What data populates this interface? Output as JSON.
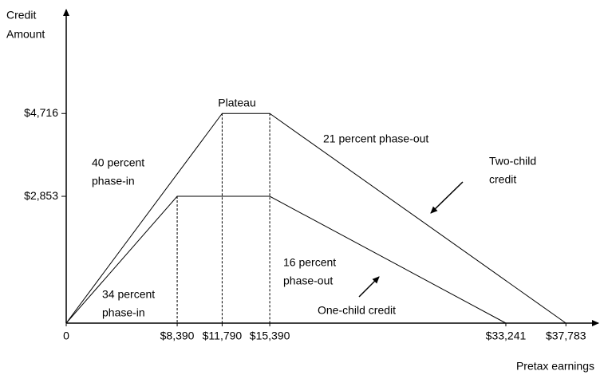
{
  "chart_data": {
    "type": "line",
    "x_label": "Pretax earnings",
    "y_label": [
      "Credit",
      "Amount"
    ],
    "xlim": [
      0,
      40000
    ],
    "ylim": [
      0,
      7000
    ],
    "xticks": [
      0,
      {
        "value": 8390,
        "label": "$8,390"
      },
      {
        "value": 11790,
        "label": "$11,790"
      },
      {
        "value": 15390,
        "label": "$15,390"
      },
      {
        "value": 33241,
        "label": "$33,241"
      },
      {
        "value": 37783,
        "label": "$37,783"
      }
    ],
    "yticks": [
      {
        "value": 2853,
        "label": "$2,853"
      },
      {
        "value": 4716,
        "label": "$4,716"
      }
    ],
    "series": [
      {
        "name": "Two-child credit",
        "color": "#000000",
        "x": [
          0,
          11790,
          15390,
          37783
        ],
        "values": [
          0,
          4716,
          4716,
          0
        ]
      },
      {
        "name": "One-child credit",
        "color": "#000000",
        "x": [
          0,
          8390,
          15390,
          33241
        ],
        "values": [
          0,
          2853,
          2853,
          0
        ]
      }
    ],
    "annotations": [
      [
        "Plateau"
      ],
      [
        "40 percent",
        "phase-in"
      ],
      [
        "21 percent phase-out"
      ],
      [
        "Two-child",
        "credit"
      ],
      [
        "16 percent",
        "phase-out"
      ],
      [
        "34 percent",
        "phase-in"
      ],
      [
        "One-child credit"
      ]
    ]
  }
}
